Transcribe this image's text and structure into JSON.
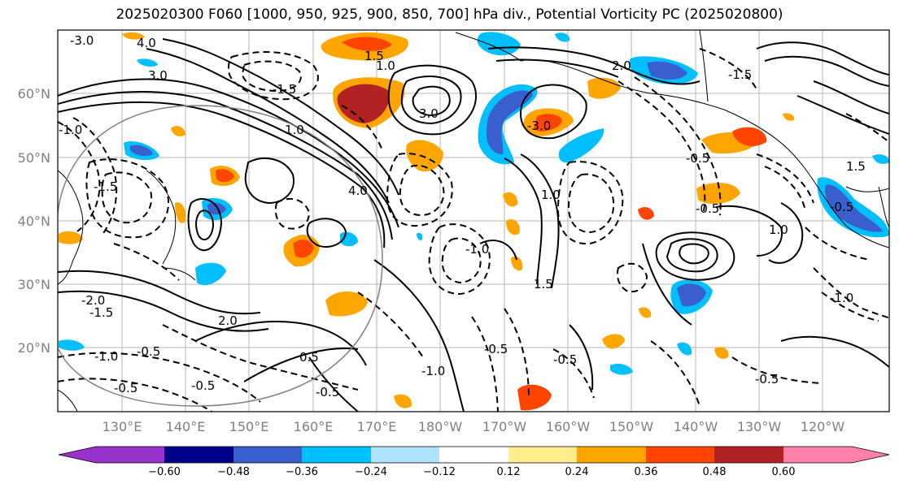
{
  "title": "2025020300 F060 [1000, 950, 925, 900, 850, 700] hPa div., Potential Vorticity PC (2025020800)",
  "lat_labels": [
    "60°N",
    "50°N",
    "40°N",
    "30°N",
    "20°N"
  ],
  "lon_labels": [
    "130°E",
    "140°E",
    "150°E",
    "160°E",
    "170°E",
    "180°W",
    "170°W",
    "160°W",
    "150°W",
    "140°W",
    "130°W",
    "120°W"
  ],
  "contour_labels": [
    "-3.0",
    "4.0",
    "3.0",
    "1.5",
    "1.0",
    "-1.5",
    "3.0",
    "-3.0",
    "2.0",
    "-1.5",
    "-1.0",
    "1.0",
    "4.0",
    "-0.5",
    "-1.5",
    "1.0",
    "-0.5",
    "-1.0",
    "-0.5",
    "1.5",
    "-0.5",
    "-1.0",
    "-0.5",
    "-0.5",
    "0.5",
    "-0.5",
    "-0.5",
    "-1.0",
    "2.0",
    "-1.0",
    "-2.0",
    "-1.5",
    "1.5",
    "-0.5",
    "-0.5",
    "1.0"
  ],
  "colorbar": {
    "colors": [
      "#9932cc",
      "#00008b",
      "#3a5fcd",
      "#00bfff",
      "#b0e2ff",
      "#ffffff",
      "#ffec8b",
      "#ffa500",
      "#ff4500",
      "#b22222",
      "#ff82ab"
    ],
    "ticks": [
      "−0.60",
      "−0.48",
      "−0.36",
      "−0.24",
      "−0.12",
      "0.12",
      "0.24",
      "0.36",
      "0.48",
      "0.60"
    ]
  }
}
